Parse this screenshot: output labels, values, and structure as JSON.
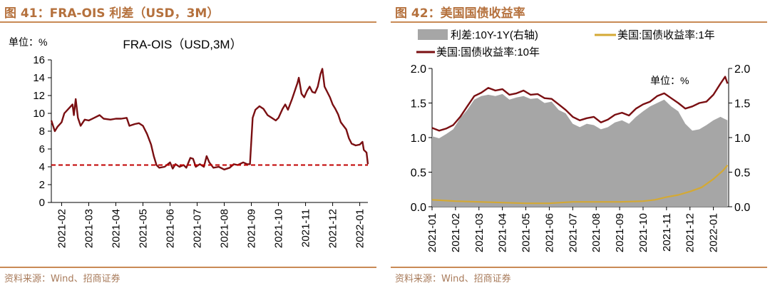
{
  "left": {
    "figure_title": "图 41：FRA-OIS 利差（USD，3M）",
    "source": "资料来源：Wind、招商证券"
  },
  "right": {
    "figure_title": "图 42：美国国债收益率",
    "source": "资料来源：Wind、招商证券"
  },
  "colors": {
    "line": "#7a0f12",
    "dashed": "#c00000",
    "area": "#a6a6a6",
    "yellow": "#d4a934",
    "title": "#b5713d"
  },
  "chart_data": [
    {
      "type": "line",
      "title": "FRA-OIS（USD,3M）",
      "unit_label": "单位：%",
      "xlabel": "",
      "ylabel": "",
      "ylim": [
        0,
        16
      ],
      "y_ticks": [
        0,
        2,
        4,
        6,
        8,
        10,
        12,
        14,
        16
      ],
      "x_tick_labels": [
        "2021-02",
        "2021-03",
        "2021-04",
        "2021-05",
        "2021-06",
        "2021-07",
        "2021-08",
        "2021-09",
        "2021-10",
        "2021-11",
        "2021-12",
        "2022-01"
      ],
      "x_ticks_month_index": [
        1,
        2,
        3,
        4,
        5,
        6,
        7,
        8,
        9,
        10,
        11,
        12
      ],
      "grid": false,
      "series": [
        {
          "name": "",
          "style": "solid",
          "points": [
            [
              0.62,
              9.2
            ],
            [
              0.75,
              8.0
            ],
            [
              0.85,
              8.5
            ],
            [
              1.0,
              9.0
            ],
            [
              1.1,
              10.0
            ],
            [
              1.25,
              10.5
            ],
            [
              1.4,
              11.0
            ],
            [
              1.45,
              9.8
            ],
            [
              1.52,
              11.6
            ],
            [
              1.6,
              9.5
            ],
            [
              1.7,
              8.6
            ],
            [
              1.85,
              9.3
            ],
            [
              2.0,
              9.2
            ],
            [
              2.2,
              9.5
            ],
            [
              2.4,
              9.8
            ],
            [
              2.55,
              9.4
            ],
            [
              2.8,
              9.3
            ],
            [
              3.0,
              9.4
            ],
            [
              3.2,
              9.4
            ],
            [
              3.4,
              9.5
            ],
            [
              3.5,
              8.6
            ],
            [
              3.7,
              8.8
            ],
            [
              3.85,
              8.9
            ],
            [
              4.0,
              8.6
            ],
            [
              4.15,
              7.7
            ],
            [
              4.3,
              6.5
            ],
            [
              4.4,
              5.2
            ],
            [
              4.5,
              4.2
            ],
            [
              4.6,
              3.9
            ],
            [
              4.8,
              4.0
            ],
            [
              5.0,
              4.5
            ],
            [
              5.1,
              3.8
            ],
            [
              5.2,
              4.3
            ],
            [
              5.35,
              4.0
            ],
            [
              5.5,
              4.2
            ],
            [
              5.6,
              3.9
            ],
            [
              5.75,
              5.0
            ],
            [
              5.85,
              4.9
            ],
            [
              5.95,
              4.0
            ],
            [
              6.1,
              4.3
            ],
            [
              6.25,
              4.0
            ],
            [
              6.35,
              5.2
            ],
            [
              6.45,
              4.5
            ],
            [
              6.6,
              3.9
            ],
            [
              6.8,
              4.0
            ],
            [
              7.0,
              3.7
            ],
            [
              7.2,
              3.9
            ],
            [
              7.35,
              4.3
            ],
            [
              7.5,
              4.2
            ],
            [
              7.7,
              4.5
            ],
            [
              7.85,
              4.3
            ],
            [
              7.95,
              4.3
            ],
            [
              8.05,
              9.5
            ],
            [
              8.15,
              10.4
            ],
            [
              8.3,
              10.8
            ],
            [
              8.45,
              10.5
            ],
            [
              8.6,
              9.8
            ],
            [
              8.75,
              9.5
            ],
            [
              8.9,
              9.2
            ],
            [
              9.0,
              9.5
            ],
            [
              9.15,
              10.5
            ],
            [
              9.25,
              11.0
            ],
            [
              9.35,
              10.4
            ],
            [
              9.5,
              11.6
            ],
            [
              9.6,
              12.5
            ],
            [
              9.7,
              13.4
            ],
            [
              9.75,
              14.0
            ],
            [
              9.85,
              12.2
            ],
            [
              9.95,
              11.8
            ],
            [
              10.05,
              12.5
            ],
            [
              10.15,
              13.0
            ],
            [
              10.25,
              12.4
            ],
            [
              10.35,
              12.3
            ],
            [
              10.45,
              13.0
            ],
            [
              10.55,
              14.4
            ],
            [
              10.62,
              15.0
            ],
            [
              10.7,
              13.0
            ],
            [
              10.8,
              12.4
            ],
            [
              10.9,
              11.8
            ],
            [
              11.0,
              11.0
            ],
            [
              11.1,
              10.5
            ],
            [
              11.2,
              9.9
            ],
            [
              11.3,
              9.0
            ],
            [
              11.4,
              8.6
            ],
            [
              11.5,
              8.2
            ],
            [
              11.6,
              7.2
            ],
            [
              11.7,
              6.6
            ],
            [
              11.85,
              6.4
            ],
            [
              12.0,
              6.5
            ],
            [
              12.1,
              6.8
            ],
            [
              12.15,
              5.9
            ],
            [
              12.25,
              5.6
            ],
            [
              12.3,
              4.3
            ]
          ]
        },
        {
          "name": "",
          "style": "dashed",
          "points": [
            [
              0.62,
              4.2
            ],
            [
              12.3,
              4.2
            ]
          ]
        }
      ]
    },
    {
      "type": "area+line",
      "unit_label": "单位：%",
      "ylim": [
        0,
        2.0
      ],
      "y_ticks": [
        0.0,
        0.5,
        1.0,
        1.5,
        2.0
      ],
      "y2lim": [
        0,
        2.0
      ],
      "y2_ticks": [
        0.0,
        0.5,
        1.0,
        1.5,
        2.0
      ],
      "x_tick_labels": [
        "2021-01",
        "2021-02",
        "2021-03",
        "2021-04",
        "2021-05",
        "2021-06",
        "2021-07",
        "2021-08",
        "2021-09",
        "2021-10",
        "2021-11",
        "2021-12",
        "2022-01"
      ],
      "x_ticks_month_index": [
        0,
        1,
        2,
        3,
        4,
        5,
        6,
        7,
        8,
        9,
        10,
        11,
        12
      ],
      "grid": false,
      "legend_position": "top",
      "series": [
        {
          "name": "利差:10Y-1Y(右轴)",
          "type": "area",
          "axis": "right",
          "points": [
            [
              0.0,
              1.02
            ],
            [
              0.3,
              0.99
            ],
            [
              0.6,
              1.05
            ],
            [
              0.9,
              1.12
            ],
            [
              1.2,
              1.28
            ],
            [
              1.5,
              1.4
            ],
            [
              1.8,
              1.55
            ],
            [
              2.1,
              1.6
            ],
            [
              2.4,
              1.62
            ],
            [
              2.7,
              1.6
            ],
            [
              3.0,
              1.63
            ],
            [
              3.3,
              1.55
            ],
            [
              3.6,
              1.58
            ],
            [
              3.9,
              1.6
            ],
            [
              4.2,
              1.56
            ],
            [
              4.5,
              1.57
            ],
            [
              4.8,
              1.5
            ],
            [
              5.1,
              1.52
            ],
            [
              5.4,
              1.4
            ],
            [
              5.7,
              1.35
            ],
            [
              6.0,
              1.2
            ],
            [
              6.3,
              1.15
            ],
            [
              6.6,
              1.2
            ],
            [
              6.9,
              1.18
            ],
            [
              7.2,
              1.12
            ],
            [
              7.5,
              1.15
            ],
            [
              7.8,
              1.22
            ],
            [
              8.1,
              1.25
            ],
            [
              8.4,
              1.2
            ],
            [
              8.7,
              1.3
            ],
            [
              9.0,
              1.38
            ],
            [
              9.3,
              1.45
            ],
            [
              9.6,
              1.5
            ],
            [
              9.9,
              1.55
            ],
            [
              10.2,
              1.45
            ],
            [
              10.5,
              1.38
            ],
            [
              10.8,
              1.2
            ],
            [
              11.1,
              1.1
            ],
            [
              11.4,
              1.12
            ],
            [
              11.7,
              1.18
            ],
            [
              12.0,
              1.25
            ],
            [
              12.3,
              1.3
            ],
            [
              12.6,
              1.25
            ]
          ]
        },
        {
          "name": "美国:国债收益率:1年",
          "type": "line",
          "axis": "left",
          "points": [
            [
              0.0,
              0.1
            ],
            [
              1.0,
              0.08
            ],
            [
              2.0,
              0.07
            ],
            [
              3.0,
              0.06
            ],
            [
              4.0,
              0.05
            ],
            [
              5.0,
              0.05
            ],
            [
              6.0,
              0.07
            ],
            [
              7.0,
              0.07
            ],
            [
              8.0,
              0.07
            ],
            [
              9.0,
              0.08
            ],
            [
              9.5,
              0.1
            ],
            [
              10.0,
              0.14
            ],
            [
              10.5,
              0.17
            ],
            [
              11.0,
              0.22
            ],
            [
              11.5,
              0.28
            ],
            [
              12.0,
              0.4
            ],
            [
              12.4,
              0.52
            ],
            [
              12.6,
              0.6
            ]
          ]
        },
        {
          "name": "美国:国债收益率:10年",
          "type": "line",
          "axis": "left",
          "points": [
            [
              0.0,
              1.14
            ],
            [
              0.3,
              1.1
            ],
            [
              0.6,
              1.13
            ],
            [
              0.9,
              1.18
            ],
            [
              1.2,
              1.3
            ],
            [
              1.5,
              1.45
            ],
            [
              1.8,
              1.6
            ],
            [
              2.1,
              1.65
            ],
            [
              2.4,
              1.72
            ],
            [
              2.7,
              1.68
            ],
            [
              3.0,
              1.7
            ],
            [
              3.3,
              1.62
            ],
            [
              3.6,
              1.64
            ],
            [
              3.9,
              1.68
            ],
            [
              4.2,
              1.62
            ],
            [
              4.5,
              1.63
            ],
            [
              4.8,
              1.57
            ],
            [
              5.1,
              1.56
            ],
            [
              5.4,
              1.48
            ],
            [
              5.7,
              1.4
            ],
            [
              6.0,
              1.3
            ],
            [
              6.3,
              1.25
            ],
            [
              6.6,
              1.28
            ],
            [
              6.9,
              1.3
            ],
            [
              7.2,
              1.22
            ],
            [
              7.5,
              1.26
            ],
            [
              7.8,
              1.33
            ],
            [
              8.1,
              1.36
            ],
            [
              8.4,
              1.32
            ],
            [
              8.7,
              1.42
            ],
            [
              9.0,
              1.48
            ],
            [
              9.3,
              1.52
            ],
            [
              9.6,
              1.6
            ],
            [
              9.9,
              1.64
            ],
            [
              10.2,
              1.57
            ],
            [
              10.5,
              1.5
            ],
            [
              10.8,
              1.42
            ],
            [
              11.1,
              1.45
            ],
            [
              11.4,
              1.5
            ],
            [
              11.7,
              1.52
            ],
            [
              12.0,
              1.62
            ],
            [
              12.3,
              1.78
            ],
            [
              12.5,
              1.88
            ],
            [
              12.6,
              1.78
            ]
          ]
        }
      ]
    }
  ]
}
